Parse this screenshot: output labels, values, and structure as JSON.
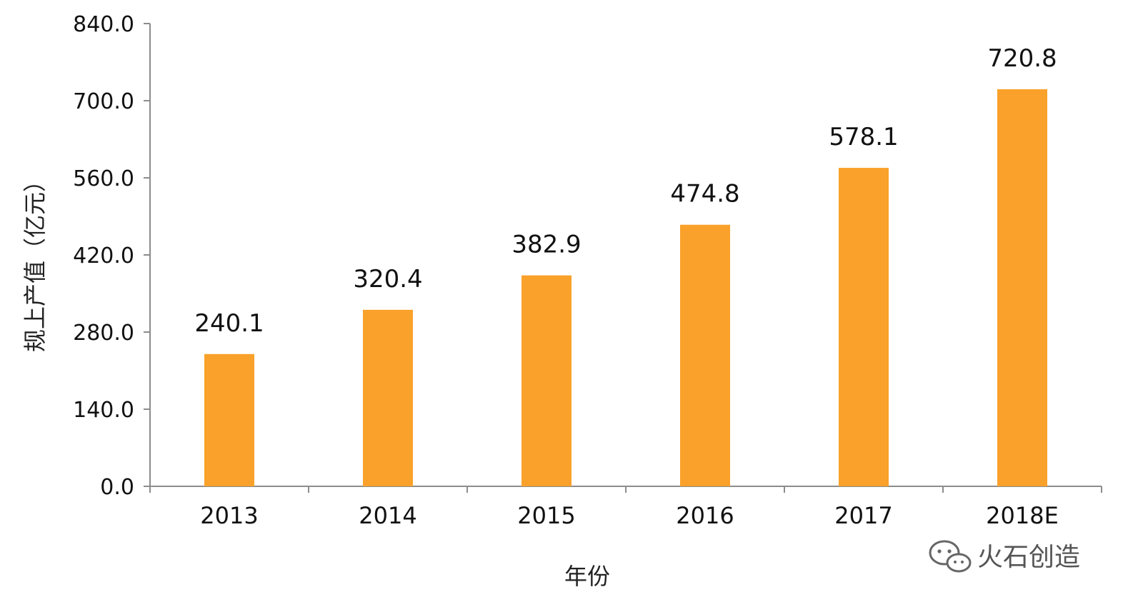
{
  "chart_data": {
    "type": "bar",
    "categories": [
      "2013",
      "2014",
      "2015",
      "2016",
      "2017",
      "2018E"
    ],
    "values": [
      240.1,
      320.4,
      382.9,
      474.8,
      578.1,
      720.8
    ],
    "value_labels": [
      "240.1",
      "320.4",
      "382.9",
      "474.8",
      "578.1",
      "720.8"
    ],
    "xlabel": "年份",
    "ylabel": "规上产值（亿元）",
    "ylim": [
      0,
      840
    ],
    "yticks": [
      0,
      140,
      280,
      420,
      560,
      700,
      840
    ],
    "ytick_labels": [
      "0.0",
      "140.0",
      "280.0",
      "420.0",
      "560.0",
      "700.0",
      "840.0"
    ],
    "bar_color": "#F9A12A",
    "axis_color": "#8c8c8c",
    "grid": false,
    "legend": "none"
  },
  "watermark": {
    "text": "火石创造",
    "icon": "wechat-icon"
  }
}
